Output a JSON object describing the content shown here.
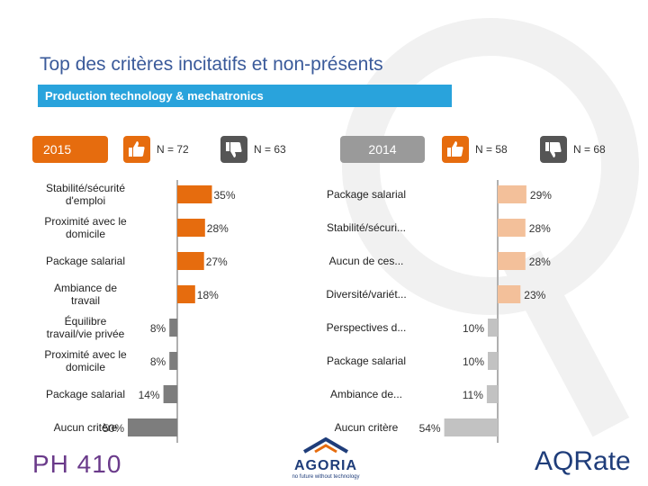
{
  "title": "Top des critères incitatifs et non-présents",
  "banner": "Production technology & mechatronics",
  "headers": {
    "year_2015": "2015",
    "year_2014": "2014",
    "n_up_2015": "N = 72",
    "n_down_2015": "N = 63",
    "n_up_2014": "N = 58",
    "n_down_2014": "N = 68"
  },
  "colors": {
    "positive": "#e66c0e",
    "negative_2015": "#7d7d7d",
    "positive_2014": "#f3c09a",
    "negative_2014": "#c2c2c2",
    "banner": "#29a3dc",
    "title": "#3a5a9a"
  },
  "chart_data": [
    {
      "type": "bar",
      "orientation": "horizontal",
      "panel": "2015",
      "series": [
        {
          "name": "",
          "categories": [
            "Stabilité/sécurité d'emploi",
            "Proximité avec le domicile",
            "Package salarial",
            "Ambiance de travail"
          ],
          "values": [
            35,
            28,
            27,
            18
          ],
          "labels": [
            "35%",
            "28%",
            "27%",
            "18%"
          ],
          "direction": "right"
        },
        {
          "name": "",
          "categories": [
            "Équilibre travail/vie privée",
            "Proximité avec le domicile",
            "Package salarial",
            "Aucun critère"
          ],
          "values": [
            8,
            8,
            14,
            50
          ],
          "labels": [
            "8%",
            "8%",
            "14%",
            "50%"
          ],
          "direction": "left"
        }
      ]
    },
    {
      "type": "bar",
      "orientation": "horizontal",
      "panel": "2014",
      "series": [
        {
          "name": "",
          "categories": [
            "Package salarial",
            "Stabilité/sécuri...",
            "Aucun de ces...",
            "Diversité/variét..."
          ],
          "values": [
            29,
            28,
            28,
            23
          ],
          "labels": [
            "29%",
            "28%",
            "28%",
            "23%"
          ],
          "direction": "right"
        },
        {
          "name": "",
          "categories": [
            "Perspectives d...",
            "Package salarial",
            "Ambiance de...",
            "Aucun critère"
          ],
          "values": [
            10,
            10,
            11,
            54
          ],
          "labels": [
            "10%",
            "10%",
            "11%",
            "54%"
          ],
          "direction": "left"
        }
      ]
    }
  ],
  "logos": {
    "ph410": "PH 410",
    "agoria": "AGORIA",
    "agoria_tagline": "no future without technology",
    "aqrate": "AQRate"
  }
}
